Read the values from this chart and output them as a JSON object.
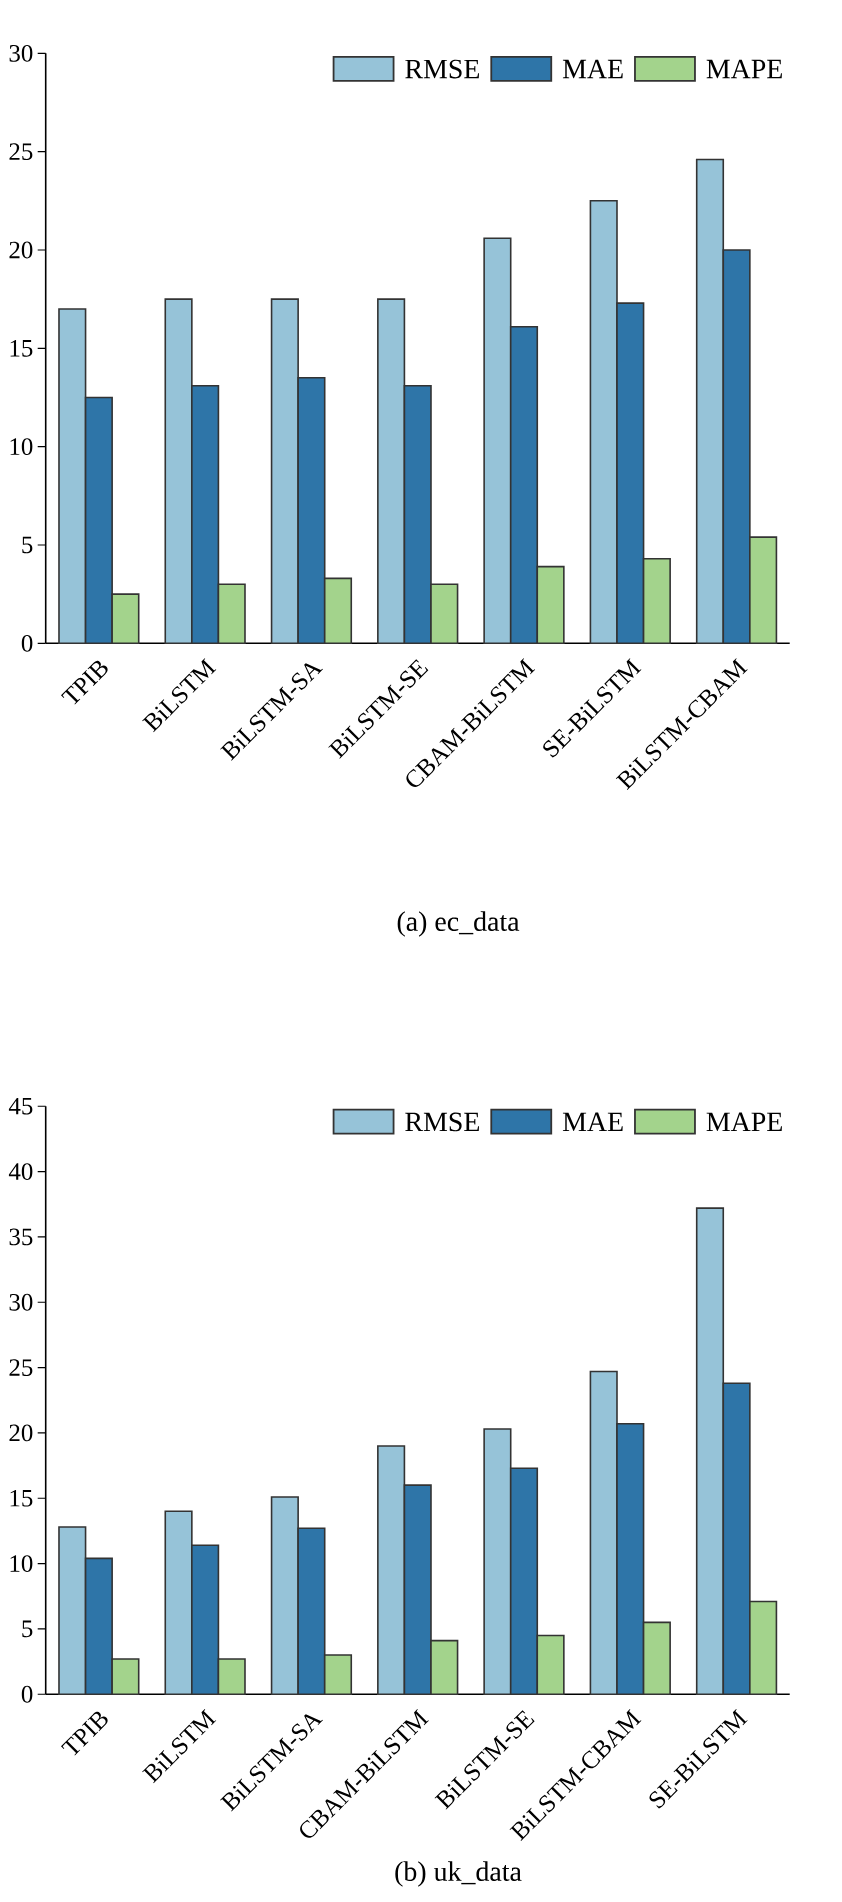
{
  "chart_data": [
    {
      "type": "bar",
      "title": "(a) ec_data",
      "categories": [
        "TPIB",
        "BiLSTM",
        "BiLSTM-SA",
        "BiLSTM-SE",
        "CBAM-BiLSTM",
        "SE-BiLSTM",
        "BiLSTM-CBAM"
      ],
      "ylim": [
        0,
        30
      ],
      "yticks": [
        0,
        5,
        10,
        15,
        20,
        25,
        30
      ],
      "legend": "top right",
      "series": [
        {
          "name": "RMSE",
          "color": "#96c3d8",
          "values": [
            17.0,
            17.5,
            17.5,
            17.5,
            20.6,
            22.5,
            24.6
          ]
        },
        {
          "name": "MAE",
          "color": "#2e75a8",
          "values": [
            12.5,
            13.1,
            13.5,
            13.1,
            16.1,
            17.3,
            20.0
          ]
        },
        {
          "name": "MAPE",
          "color": "#a3d38c",
          "values": [
            2.5,
            3.0,
            3.3,
            3.0,
            3.9,
            4.3,
            5.4
          ]
        }
      ]
    },
    {
      "type": "bar",
      "title": "(b) uk_data",
      "categories": [
        "TPIB",
        "BiLSTM",
        "BiLSTM-SA",
        "CBAM-BiLSTM",
        "BiLSTM-SE",
        "BiLSTM-CBAM",
        "SE-BiLSTM"
      ],
      "ylim": [
        0,
        45
      ],
      "yticks": [
        0,
        5,
        10,
        15,
        20,
        25,
        30,
        35,
        40,
        45
      ],
      "legend": "top right",
      "series": [
        {
          "name": "RMSE",
          "color": "#96c3d8",
          "values": [
            12.8,
            14.0,
            15.1,
            19.0,
            20.3,
            24.7,
            37.2
          ]
        },
        {
          "name": "MAE",
          "color": "#2e75a8",
          "values": [
            10.4,
            11.4,
            12.7,
            16.0,
            17.3,
            20.7,
            23.8
          ]
        },
        {
          "name": "MAPE",
          "color": "#a3d38c",
          "values": [
            2.7,
            2.7,
            3.0,
            4.1,
            4.5,
            5.5,
            7.1
          ]
        }
      ]
    }
  ]
}
